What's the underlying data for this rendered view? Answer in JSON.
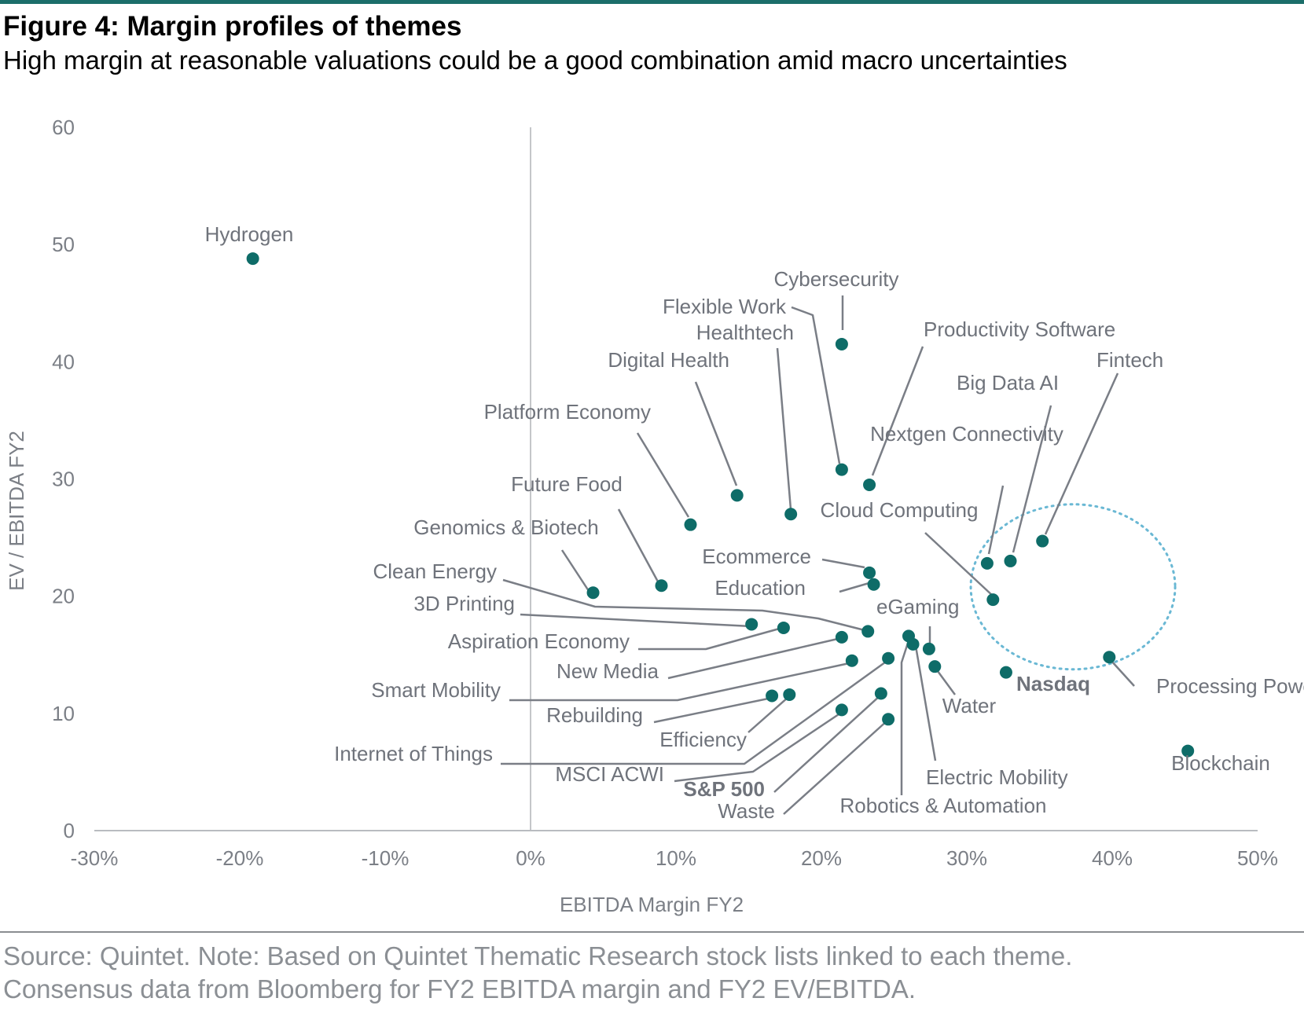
{
  "title": "Figure 4: Margin profiles of themes",
  "subtitle": "High margin at reasonable valuations could be a good combination amid macro uncertainties",
  "source_lines": [
    "Source: Quintet. Note: Based on Quintet Thematic Research stock lists linked to each theme.",
    "Consensus data from Bloomberg for FY2 EBITDA margin and FY2 EV/EBITDA."
  ],
  "colors": {
    "accent": "#1b6e6a",
    "point": "#0e6c68",
    "leader": "#7a7e86",
    "text": "#6f737b",
    "highlight_ellipse": "#6ab8d4"
  },
  "chart_data": {
    "type": "scatter",
    "xlabel": "EBITDA Margin FY2",
    "ylabel": "EV / EBITDA FY2",
    "xlim": [
      -0.3,
      0.5
    ],
    "ylim": [
      0,
      60
    ],
    "xticks": [
      {
        "value": -0.3,
        "label": "-30%"
      },
      {
        "value": -0.2,
        "label": "-20%"
      },
      {
        "value": -0.1,
        "label": "-10%"
      },
      {
        "value": 0.0,
        "label": "0%"
      },
      {
        "value": 0.1,
        "label": "10%"
      },
      {
        "value": 0.2,
        "label": "20%"
      },
      {
        "value": 0.3,
        "label": "30%"
      },
      {
        "value": 0.4,
        "label": "40%"
      },
      {
        "value": 0.5,
        "label": "50%"
      }
    ],
    "yticks": [
      {
        "value": 0,
        "label": "0"
      },
      {
        "value": 10,
        "label": "10"
      },
      {
        "value": 20,
        "label": "20"
      },
      {
        "value": 30,
        "label": "30"
      },
      {
        "value": 40,
        "label": "40"
      },
      {
        "value": 50,
        "label": "50"
      },
      {
        "value": 60,
        "label": "60"
      }
    ],
    "grid": false,
    "vertical_reference_line_x": 0.0,
    "highlight_ellipse_center": [
      0.373,
      20.8
    ],
    "points": [
      {
        "name": "Hydrogen",
        "x": -0.191,
        "y": 48.8
      },
      {
        "name": "Cybersecurity",
        "x": 0.214,
        "y": 41.5
      },
      {
        "name": "Flexible Work",
        "x": 0.214,
        "y": 30.8
      },
      {
        "name": "Productivity Software",
        "x": 0.233,
        "y": 29.5
      },
      {
        "name": "Digital Health",
        "x": 0.142,
        "y": 28.6
      },
      {
        "name": "Healthtech",
        "x": 0.179,
        "y": 27.0
      },
      {
        "name": "Platform Economy",
        "x": 0.11,
        "y": 26.1
      },
      {
        "name": "Fintech",
        "x": 0.352,
        "y": 24.7
      },
      {
        "name": "Big Data AI",
        "x": 0.33,
        "y": 23.0
      },
      {
        "name": "Nextgen Connectivity",
        "x": 0.314,
        "y": 22.8
      },
      {
        "name": "Ecommerce",
        "x": 0.233,
        "y": 22.0
      },
      {
        "name": "Education",
        "x": 0.236,
        "y": 21.0
      },
      {
        "name": "Future Food",
        "x": 0.09,
        "y": 20.9
      },
      {
        "name": "Genomics & Biotech",
        "x": 0.043,
        "y": 20.3
      },
      {
        "name": "Cloud Computing",
        "x": 0.318,
        "y": 19.7
      },
      {
        "name": "3D Printing",
        "x": 0.152,
        "y": 17.6
      },
      {
        "name": "Clean Energy",
        "x": 0.232,
        "y": 17.0
      },
      {
        "name": "Aspiration Economy",
        "x": 0.174,
        "y": 17.3
      },
      {
        "name": "Robotics & Automation",
        "x": 0.26,
        "y": 16.6
      },
      {
        "name": "New Media",
        "x": 0.214,
        "y": 16.5
      },
      {
        "name": "Electric Mobility",
        "x": 0.263,
        "y": 15.9
      },
      {
        "name": "eGaming",
        "x": 0.274,
        "y": 15.5
      },
      {
        "name": "Processing Power",
        "x": 0.398,
        "y": 14.8
      },
      {
        "name": "Internet of Things",
        "x": 0.246,
        "y": 14.7
      },
      {
        "name": "Smart Mobility",
        "x": 0.221,
        "y": 14.5
      },
      {
        "name": "Water",
        "x": 0.278,
        "y": 14.0
      },
      {
        "name": "Nasdaq",
        "x": 0.327,
        "y": 13.5,
        "bold": true
      },
      {
        "name": "S&P 500",
        "x": 0.241,
        "y": 11.7,
        "bold": true
      },
      {
        "name": "Rebuilding",
        "x": 0.178,
        "y": 11.6
      },
      {
        "name": "Efficiency",
        "x": 0.166,
        "y": 11.5
      },
      {
        "name": "MSCI ACWI",
        "x": 0.214,
        "y": 10.3
      },
      {
        "name": "Waste",
        "x": 0.246,
        "y": 9.5
      },
      {
        "name": "Blockchain",
        "x": 0.452,
        "y": 6.8
      }
    ]
  }
}
